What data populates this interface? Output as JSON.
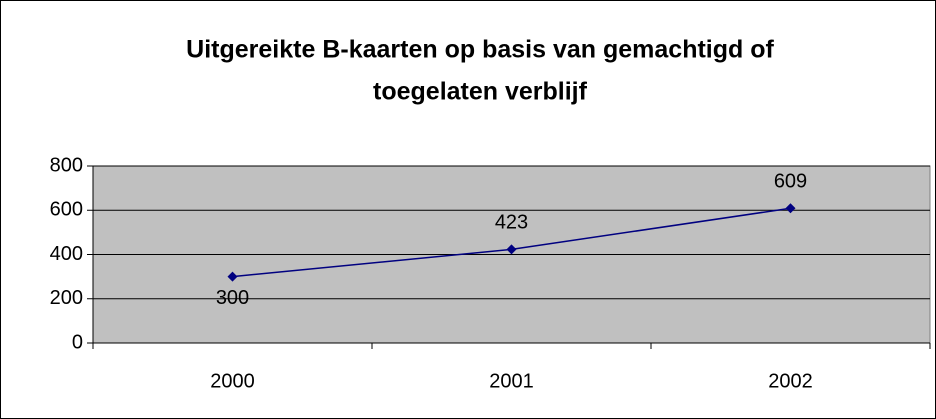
{
  "chart_data": {
    "type": "line",
    "title": [
      "Uitgereikte B-kaarten op basis van gemachtigd of",
      "toegelaten verblijf"
    ],
    "categories": [
      "2000",
      "2001",
      "2002"
    ],
    "series": [
      {
        "values": [
          300,
          423,
          609
        ],
        "color": "#000080"
      }
    ],
    "ylim": [
      0,
      800
    ],
    "yticks": [
      0,
      200,
      400,
      600,
      800
    ],
    "grid": true,
    "plot_background": "#c0c0c0"
  }
}
